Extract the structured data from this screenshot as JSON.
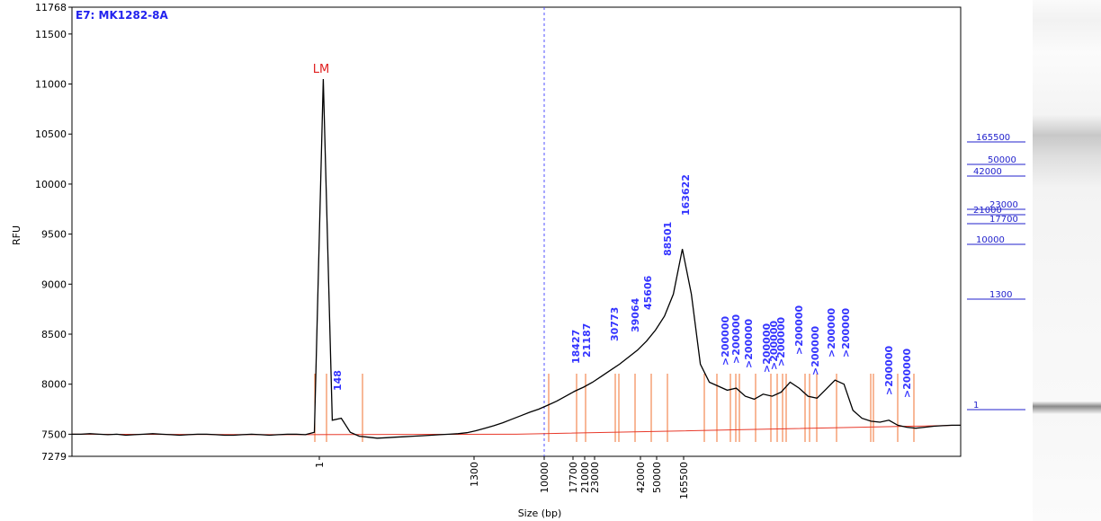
{
  "chart_data": {
    "type": "line",
    "title": "E7: MK1282-8A",
    "ylabel": "RFU",
    "xlabel": "Size (bp)",
    "ylim": [
      7279,
      11768
    ],
    "yticks": [
      7279,
      7500,
      8000,
      8500,
      9000,
      9500,
      10000,
      10500,
      11000,
      11500,
      11768
    ],
    "xticks": [
      1,
      1300,
      10000,
      17700,
      21000,
      23000,
      42000,
      50000,
      165500
    ],
    "series": [
      {
        "color": "#000000",
        "values": [
          7500,
          7500,
          7505,
          7500,
          7495,
          7500,
          7490,
          7495,
          7500,
          7505,
          7500,
          7495,
          7490,
          7495,
          7500,
          7500,
          7495,
          7490,
          7490,
          7495,
          7500,
          7495,
          7490,
          7495,
          7500,
          7500,
          7495,
          7520,
          11050,
          7640,
          7660,
          7520,
          7480,
          7470,
          7460,
          7465,
          7470,
          7475,
          7480,
          7485,
          7490,
          7495,
          7500,
          7505,
          7515,
          7535,
          7560,
          7585,
          7615,
          7650,
          7685,
          7720,
          7750,
          7790,
          7830,
          7880,
          7930,
          7970,
          8020,
          8080,
          8140,
          8200,
          8270,
          8340,
          8430,
          8540,
          8680,
          8900,
          9350,
          8900,
          8200,
          8020,
          7980,
          7940,
          7960,
          7880,
          7850,
          7900,
          7880,
          7920,
          8020,
          7960,
          7880,
          7860,
          7950,
          8040,
          8000,
          7740,
          7660,
          7630,
          7620,
          7640,
          7590,
          7570,
          7560,
          7570,
          7580,
          7585,
          7590,
          7590
        ]
      },
      {
        "color": "#e8392a",
        "values": [
          7500,
          7495,
          7500,
          7545,
          7590
        ]
      }
    ],
    "marker_label": "LM",
    "peak_labels": [
      148,
      18427,
      21187,
      30773,
      39064,
      45606,
      88501,
      163622,
      ">200000",
      ">200000",
      ">200000",
      ">200000",
      ">200000",
      ">200000",
      ">200000",
      ">200000",
      ">200000",
      ">200000",
      ">200000",
      ">200000"
    ],
    "ladder": [
      165500,
      50000,
      42000,
      23000,
      21000,
      17700,
      10000,
      1300,
      1
    ]
  }
}
